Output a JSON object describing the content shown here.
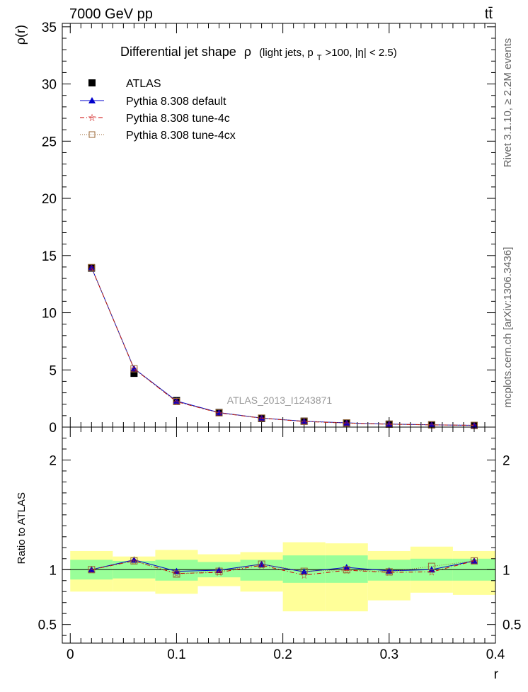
{
  "header": {
    "left": "7000 GeV pp",
    "right": "tt̄"
  },
  "side": {
    "rivet": "Rivet 3.1.10, ≥ 2.2M events",
    "source": "mcplots.cern.ch [arXiv:1306.3436]"
  },
  "colors": {
    "atlas": "#000000",
    "default": "#0000cc",
    "tune4c": "#cc0000",
    "tune4cx": "#996633",
    "band_inner": "#99ff99",
    "band_outer": "#ffff99"
  },
  "chart_data": [
    {
      "type": "line",
      "panel": "main",
      "title": "Differential jet shape ρ (light jets, pT>100, |η| < 2.5)",
      "title_main": "Differential jet shape",
      "title_rho": "ρ",
      "title_detail": "(light jets, p",
      "title_sub": "T",
      "title_tail": ">100, |η| < 2.5)",
      "watermark": "ATLAS_2013_I1243871",
      "xlabel": "r",
      "ylabel": "ρ(r)",
      "xlim": [
        -0.0075,
        0.4
      ],
      "ylim": [
        0,
        35.3
      ],
      "xticks": [
        0,
        0.1,
        0.2,
        0.3,
        0.4
      ],
      "xtick_labels": [
        "0",
        "0.1",
        "0.2",
        "0.3",
        "0.4"
      ],
      "yticks": [
        0,
        5,
        10,
        15,
        20,
        25,
        30,
        35
      ],
      "ytick_labels": [
        "0",
        "5",
        "10",
        "15",
        "20",
        "25",
        "30",
        "35"
      ],
      "x": [
        0.02,
        0.06,
        0.1,
        0.14,
        0.18,
        0.22,
        0.26,
        0.3,
        0.34,
        0.38
      ],
      "legend": [
        "ATLAS",
        "Pythia 8.308 default",
        "Pythia 8.308 tune-4c",
        "Pythia 8.308 tune-4cx"
      ],
      "series": [
        {
          "name": "ATLAS",
          "values": [
            13.9,
            4.7,
            2.32,
            1.28,
            0.75,
            0.52,
            0.36,
            0.26,
            0.2,
            0.14
          ]
        },
        {
          "name": "Pythia 8.308 default",
          "values": [
            13.95,
            5.12,
            2.28,
            1.27,
            0.79,
            0.51,
            0.37,
            0.26,
            0.2,
            0.155
          ]
        },
        {
          "name": "Pythia 8.308 tune-4c",
          "values": [
            13.95,
            5.1,
            2.22,
            1.24,
            0.78,
            0.49,
            0.355,
            0.25,
            0.195,
            0.155
          ]
        },
        {
          "name": "Pythia 8.308 tune-4cx",
          "values": [
            13.95,
            5.1,
            2.23,
            1.25,
            0.79,
            0.51,
            0.36,
            0.255,
            0.205,
            0.155
          ]
        }
      ]
    },
    {
      "type": "line",
      "panel": "ratio",
      "xlabel": "r",
      "ylabel": "Ratio to ATLAS",
      "xlim": [
        -0.0075,
        0.4
      ],
      "ylim": [
        0.33,
        2.3
      ],
      "yticks": [
        0.5,
        1,
        2
      ],
      "ytick_labels": [
        "0.5",
        "1",
        "2"
      ],
      "x": [
        0.02,
        0.06,
        0.1,
        0.14,
        0.18,
        0.22,
        0.26,
        0.3,
        0.34,
        0.38
      ],
      "x_edges": [
        0,
        0.04,
        0.08,
        0.12,
        0.16,
        0.2,
        0.24,
        0.28,
        0.32,
        0.36,
        0.4
      ],
      "band_inner": {
        "lo": [
          0.91,
          0.92,
          0.9,
          0.93,
          0.9,
          0.88,
          0.88,
          0.9,
          0.9,
          0.9
        ],
        "hi": [
          1.09,
          1.08,
          1.09,
          1.07,
          1.09,
          1.13,
          1.13,
          1.09,
          1.1,
          1.1
        ]
      },
      "band_outer": {
        "lo": [
          0.8,
          0.8,
          0.78,
          0.85,
          0.8,
          0.62,
          0.62,
          0.72,
          0.79,
          0.77
        ],
        "hi": [
          1.17,
          1.12,
          1.18,
          1.14,
          1.16,
          1.25,
          1.24,
          1.17,
          1.21,
          1.17
        ]
      },
      "series": [
        {
          "name": "Pythia 8.308 default",
          "values": [
            1.0,
            1.09,
            0.985,
            0.995,
            1.05,
            0.98,
            1.02,
            0.99,
            1.0,
            1.08
          ]
        },
        {
          "name": "Pythia 8.308 tune-4c",
          "values": [
            1.0,
            1.08,
            0.965,
            0.975,
            1.04,
            0.95,
            0.995,
            0.975,
            0.98,
            1.08
          ]
        },
        {
          "name": "Pythia 8.308 tune-4cx",
          "values": [
            1.0,
            1.08,
            0.96,
            0.985,
            1.05,
            0.985,
            1.0,
            0.98,
            1.03,
            1.08
          ]
        }
      ]
    }
  ]
}
